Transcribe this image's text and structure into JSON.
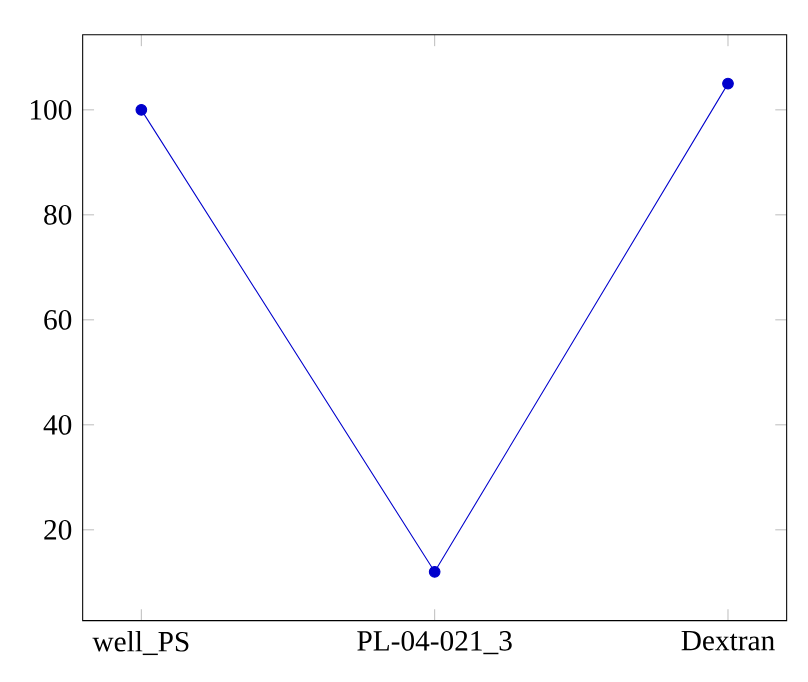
{
  "chart_data": {
    "type": "line",
    "categories": [
      "well_PS",
      "PL-04-021_3",
      "Dextran"
    ],
    "series": [
      {
        "color": "#0000cc",
        "values": [
          100,
          12,
          105
        ]
      }
    ],
    "ylim": [
      2.7,
      114.3
    ],
    "yticks": [
      20,
      40,
      60,
      80,
      100
    ],
    "marker": "circle",
    "line_style": "solid",
    "grid": false
  }
}
